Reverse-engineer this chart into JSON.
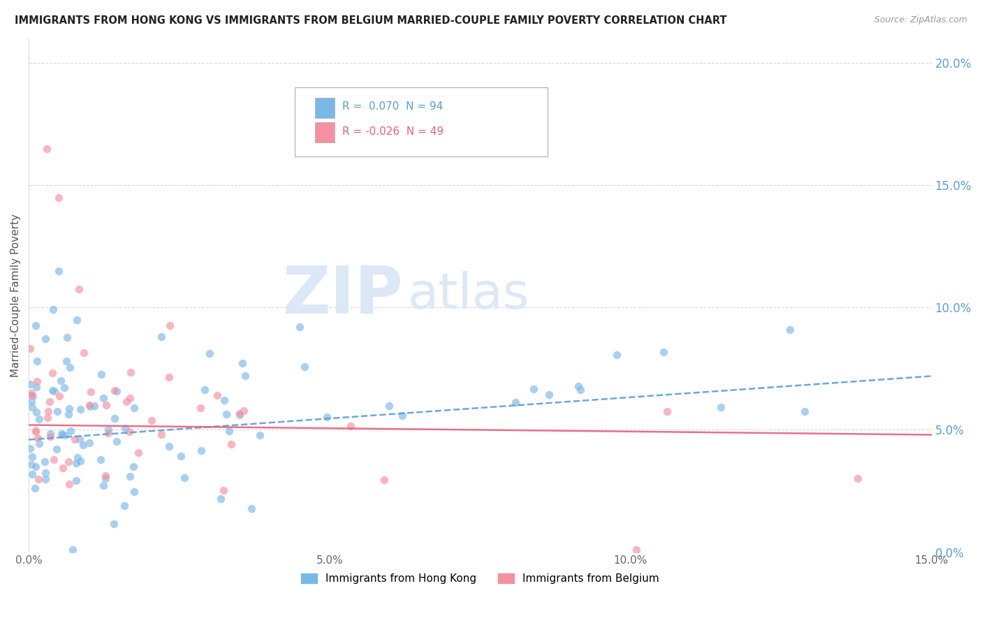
{
  "title": "IMMIGRANTS FROM HONG KONG VS IMMIGRANTS FROM BELGIUM MARRIED-COUPLE FAMILY POVERTY CORRELATION CHART",
  "source": "Source: ZipAtlas.com",
  "ylabel": "Married-Couple Family Poverty",
  "hk_R": 0.07,
  "hk_N": 94,
  "be_R": -0.026,
  "be_N": 49,
  "hk_color": "#7ab8e8",
  "be_color": "#f590a0",
  "hk_line_color": "#5a9fd4",
  "be_line_color": "#e8607a",
  "xlim": [
    0.0,
    0.15
  ],
  "ylim": [
    0.0,
    0.21
  ],
  "yticks": [
    0.0,
    0.05,
    0.1,
    0.15,
    0.2
  ],
  "ytick_labels": [
    "0.0%",
    "5.0%",
    "10.0%",
    "15.0%",
    "20.0%"
  ],
  "xticks": [
    0.0,
    0.05,
    0.1,
    0.15
  ],
  "xtick_labels": [
    "0.0%",
    "5.0%",
    "10.0%",
    "15.0%"
  ],
  "watermark_zip": "ZIP",
  "watermark_atlas": "atlas",
  "legend_hk_label": "Immigrants from Hong Kong",
  "legend_be_label": "Immigrants from Belgium",
  "background_color": "#ffffff",
  "hk_trend_start_y": 0.046,
  "hk_trend_end_y": 0.072,
  "be_trend_start_y": 0.052,
  "be_trend_end_y": 0.048
}
